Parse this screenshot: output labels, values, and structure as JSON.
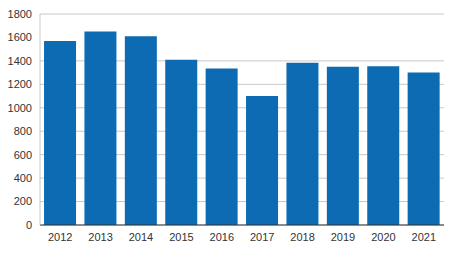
{
  "chart_data": {
    "type": "bar",
    "categories": [
      "2012",
      "2013",
      "2014",
      "2015",
      "2016",
      "2017",
      "2018",
      "2019",
      "2020",
      "2021"
    ],
    "values": [
      1570,
      1650,
      1610,
      1410,
      1335,
      1100,
      1385,
      1350,
      1355,
      1300
    ],
    "color": "#0d6bb3",
    "ylim": [
      0,
      1800
    ],
    "yticks": [
      0,
      200,
      400,
      600,
      800,
      1000,
      1200,
      1400,
      1600,
      1800
    ],
    "grid": true
  }
}
